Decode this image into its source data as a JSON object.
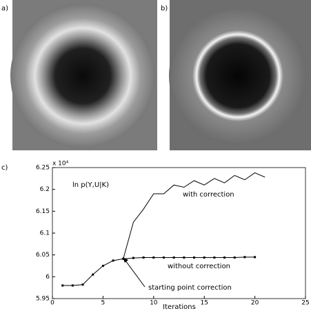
{
  "panels": {
    "a": "a)",
    "b": "b)",
    "c": "c)"
  },
  "chart_data": {
    "type": "line",
    "annotation": "ln p(Y,U|K)",
    "arrow_label": "starting point correction",
    "multiplier": "x 10⁴",
    "x_label": "Iterations",
    "x": [
      1,
      2,
      3,
      4,
      5,
      6,
      7,
      8,
      9,
      10,
      11,
      12,
      13,
      14,
      15,
      16,
      17,
      18,
      19,
      20,
      21
    ],
    "series": [
      {
        "name": "without correction",
        "color": "#000000",
        "markers": true,
        "values": [
          5.98,
          5.98,
          5.982,
          6.005,
          6.025,
          6.037,
          6.041,
          6.043,
          6.044,
          6.044,
          6.044,
          6.044,
          6.044,
          6.044,
          6.044,
          6.044,
          6.044,
          6.044,
          6.045,
          6.045,
          null
        ]
      },
      {
        "name": "with correction",
        "color": "#000000",
        "markers": false,
        "values": [
          null,
          null,
          null,
          null,
          null,
          null,
          6.041,
          6.125,
          6.155,
          6.19,
          6.19,
          6.21,
          6.205,
          6.22,
          6.21,
          6.225,
          6.215,
          6.232,
          6.222,
          6.238,
          6.228
        ]
      }
    ],
    "xlim": [
      0,
      25
    ],
    "xticks": [
      0,
      5,
      10,
      15,
      20,
      25
    ],
    "ylim": [
      5.95,
      6.25
    ],
    "yticks": [
      5.95,
      6,
      6.05,
      6.1,
      6.15,
      6.2,
      6.25
    ]
  }
}
